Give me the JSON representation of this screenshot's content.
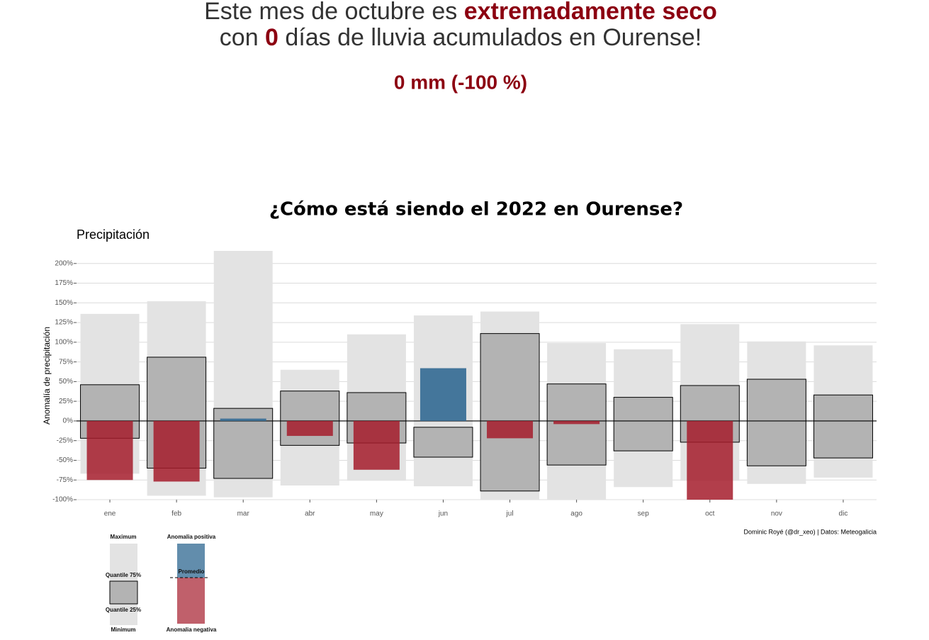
{
  "headline": {
    "line1": [
      "Este mes de octubre es ",
      "extremadamente seco"
    ],
    "line2": [
      "con ",
      "0",
      " días de lluvia acumulados en Ourense!"
    ],
    "summary": "0 mm (-100 %)"
  },
  "chart_data": {
    "type": "bar",
    "title": "¿Cómo está siendo el 2022 en Ourense?",
    "subtitle": "Precipitación",
    "y_label": "Anomalía de precipitación",
    "caption": "Dominic Royé (@dr_xeo) | Datos: Meteogalicia",
    "categories": [
      "ene",
      "feb",
      "mar",
      "abr",
      "may",
      "jun",
      "jul",
      "ago",
      "sep",
      "oct",
      "nov",
      "dic"
    ],
    "series": [
      {
        "name": "Minimum",
        "color": "#e3e3e3",
        "values": [
          -67,
          -95,
          -97,
          -82,
          -76,
          -83,
          -100,
          -100,
          -84,
          -76,
          -80,
          -72
        ]
      },
      {
        "name": "Quantile 25%",
        "color": "#b3b3b3",
        "values": [
          -22,
          -60,
          -73,
          -31,
          -28,
          -46,
          -89,
          -56,
          -38,
          -27,
          -57,
          -47
        ]
      },
      {
        "name": "Quantile 75%",
        "color": "#b3b3b3",
        "values": [
          46,
          81,
          16,
          38,
          36,
          -8,
          111,
          47,
          30,
          45,
          53,
          33
        ]
      },
      {
        "name": "Maximum",
        "color": "#e3e3e3",
        "values": [
          136,
          152,
          216,
          65,
          110,
          134,
          139,
          99,
          91,
          123,
          101,
          96
        ]
      }
    ],
    "anomaly": {
      "values": [
        -75,
        -77,
        3,
        -19,
        -62,
        67,
        -22,
        -4,
        null,
        -100,
        null,
        null
      ],
      "positive_name": "Anomalia positiva",
      "negative_name": "Anomalia negativa",
      "mean_name": "Promedio",
      "positive_color": "#3b7097",
      "negative_color": "#a51c2c"
    },
    "ylim": [
      -100,
      216
    ],
    "yticks": [
      {
        "value": -100,
        "label": "-100%"
      },
      {
        "value": -75,
        "label": "-75%"
      },
      {
        "value": -50,
        "label": "-50%"
      },
      {
        "value": -25,
        "label": "-25%"
      },
      {
        "value": 0,
        "label": "0%"
      },
      {
        "value": 25,
        "label": "25%"
      },
      {
        "value": 50,
        "label": "50%"
      },
      {
        "value": 75,
        "label": "75%"
      },
      {
        "value": 100,
        "label": "100%"
      },
      {
        "value": 125,
        "label": "125%"
      },
      {
        "value": 150,
        "label": "150%"
      },
      {
        "value": 175,
        "label": "175%"
      },
      {
        "value": 200,
        "label": "200%"
      }
    ],
    "grid": true
  }
}
